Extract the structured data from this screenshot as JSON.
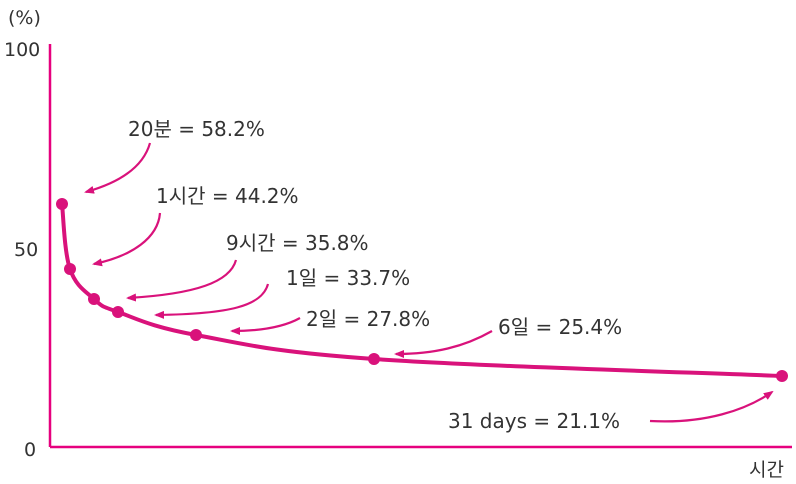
{
  "chart_data": {
    "type": "line",
    "ylabel": "(%)",
    "xlabel": "시간",
    "ylim": [
      0,
      100
    ],
    "y_ticks": [
      "100",
      "50",
      "0"
    ],
    "grid": false,
    "points": [
      {
        "label": "20분 = 58.2%",
        "y": 58.2
      },
      {
        "label": "1시간 = 44.2%",
        "y": 44.2
      },
      {
        "label": "9시간 = 35.8%",
        "y": 35.8
      },
      {
        "label": "1일 = 33.7%",
        "y": 33.7
      },
      {
        "label": "2일 = 27.8%",
        "y": 27.8
      },
      {
        "label": "6일 = 25.4%",
        "y": 25.4
      },
      {
        "label": "31 days = 21.1%",
        "y": 21.1
      }
    ],
    "colors": {
      "curve": "#d9127b",
      "axis": "#e6007e",
      "text": "#333333"
    }
  }
}
